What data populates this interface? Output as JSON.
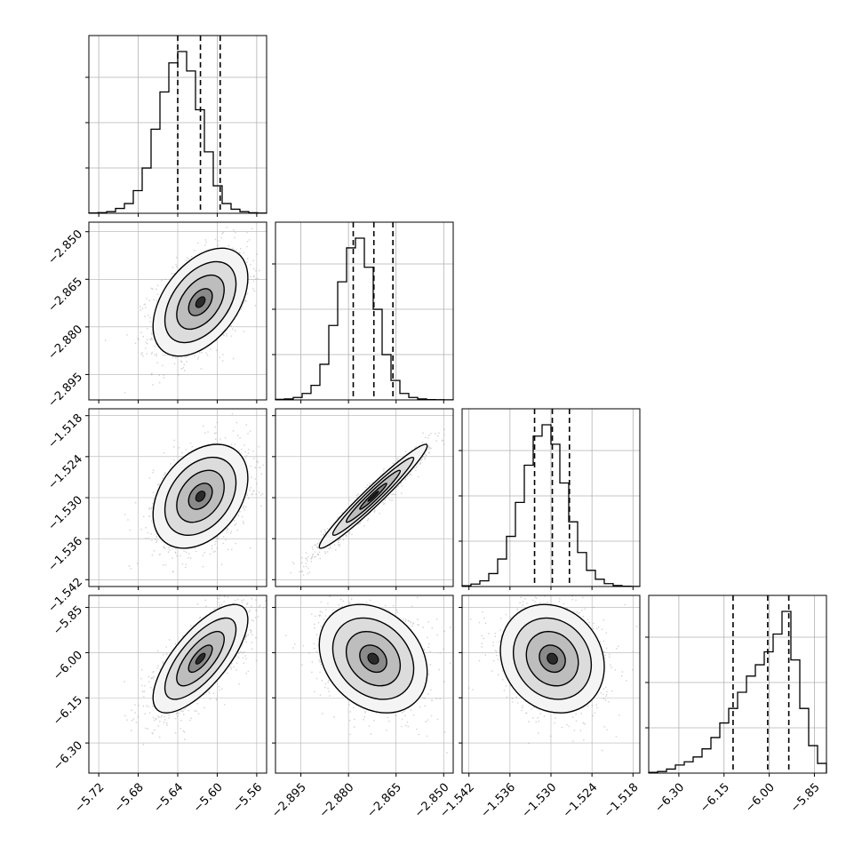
{
  "chart_data": {
    "type": "corner",
    "title": "",
    "parameters": [
      {
        "label": "",
        "range": [
          -5.73,
          -5.55
        ],
        "ticks": [
          -5.72,
          -5.68,
          -5.64,
          -5.6,
          -5.56
        ],
        "tick_labels": [
          "−5.72",
          "−5.68",
          "−5.64",
          "−5.60",
          "−5.56"
        ],
        "quantiles": [
          -5.64,
          -5.617,
          -5.597
        ],
        "histogram": [
          0.002,
          0.004,
          0.01,
          0.03,
          0.06,
          0.14,
          0.28,
          0.52,
          0.75,
          0.93,
          1.0,
          0.88,
          0.64,
          0.38,
          0.17,
          0.06,
          0.025,
          0.01,
          0.003,
          0.001
        ]
      },
      {
        "label": "",
        "range": [
          -2.903,
          -2.847
        ],
        "ticks": [
          -2.895,
          -2.88,
          -2.865,
          -2.85
        ],
        "tick_labels": [
          "−2.895",
          "−2.880",
          "−2.865",
          "−2.850"
        ],
        "quantiles": [
          -2.8785,
          -2.872,
          -2.866
        ],
        "histogram": [
          0.003,
          0.006,
          0.015,
          0.04,
          0.09,
          0.22,
          0.46,
          0.73,
          0.94,
          1.0,
          0.82,
          0.56,
          0.28,
          0.12,
          0.04,
          0.015,
          0.006,
          0.002,
          0.001,
          0.0005
        ]
      },
      {
        "label": "",
        "range": [
          -1.543,
          -1.517
        ],
        "ticks": [
          -1.542,
          -1.536,
          -1.53,
          -1.524,
          -1.518
        ],
        "tick_labels": [
          "−1.542",
          "−1.536",
          "−1.530",
          "−1.524",
          "−1.518"
        ],
        "quantiles": [
          -1.5324,
          -1.5298,
          -1.5273
        ],
        "histogram": [
          0.005,
          0.015,
          0.035,
          0.08,
          0.17,
          0.31,
          0.52,
          0.75,
          0.93,
          1.0,
          0.88,
          0.64,
          0.4,
          0.21,
          0.1,
          0.045,
          0.018,
          0.006,
          0.002,
          0.0005
        ]
      },
      {
        "label": "",
        "range": [
          -6.4,
          -5.81
        ],
        "ticks": [
          -6.3,
          -6.15,
          -6.0,
          -5.85
        ],
        "tick_labels": [
          "−6.30",
          "−6.15",
          "−6.00",
          "−5.85"
        ],
        "quantiles": [
          -6.12,
          -6.005,
          -5.935
        ],
        "histogram": [
          0.005,
          0.01,
          0.025,
          0.05,
          0.07,
          0.1,
          0.15,
          0.22,
          0.31,
          0.4,
          0.5,
          0.6,
          0.67,
          0.75,
          0.86,
          1.0,
          0.7,
          0.4,
          0.17,
          0.06
        ]
      }
    ],
    "pairs": [
      {
        "x": 0,
        "y": 1,
        "mean": [
          -5.617,
          -2.8722
        ],
        "sd": [
          0.024,
          0.0085
        ],
        "corr": 0.45
      },
      {
        "x": 0,
        "y": 2,
        "mean": [
          -5.617,
          -1.5298
        ],
        "sd": [
          0.024,
          0.0038
        ],
        "corr": 0.35
      },
      {
        "x": 1,
        "y": 2,
        "mean": [
          -2.8722,
          -1.5298
        ],
        "sd": [
          0.0085,
          0.0038
        ],
        "corr": 0.97
      },
      {
        "x": 0,
        "y": 3,
        "mean": [
          -5.617,
          -6.02
        ],
        "sd": [
          0.024,
          0.09
        ],
        "corr": 0.72
      },
      {
        "x": 1,
        "y": 3,
        "mean": [
          -2.8722,
          -6.02
        ],
        "sd": [
          0.0085,
          0.09
        ],
        "corr": -0.25
      },
      {
        "x": 2,
        "y": 3,
        "mean": [
          -1.5298,
          -6.02
        ],
        "sd": [
          0.0038,
          0.09
        ],
        "corr": -0.15
      }
    ],
    "colors": {
      "line": "#000000",
      "grid": "#b0b0b0",
      "scatter": "#9a9a9a",
      "background": "#ffffff"
    },
    "grid": true,
    "legend": "none"
  }
}
